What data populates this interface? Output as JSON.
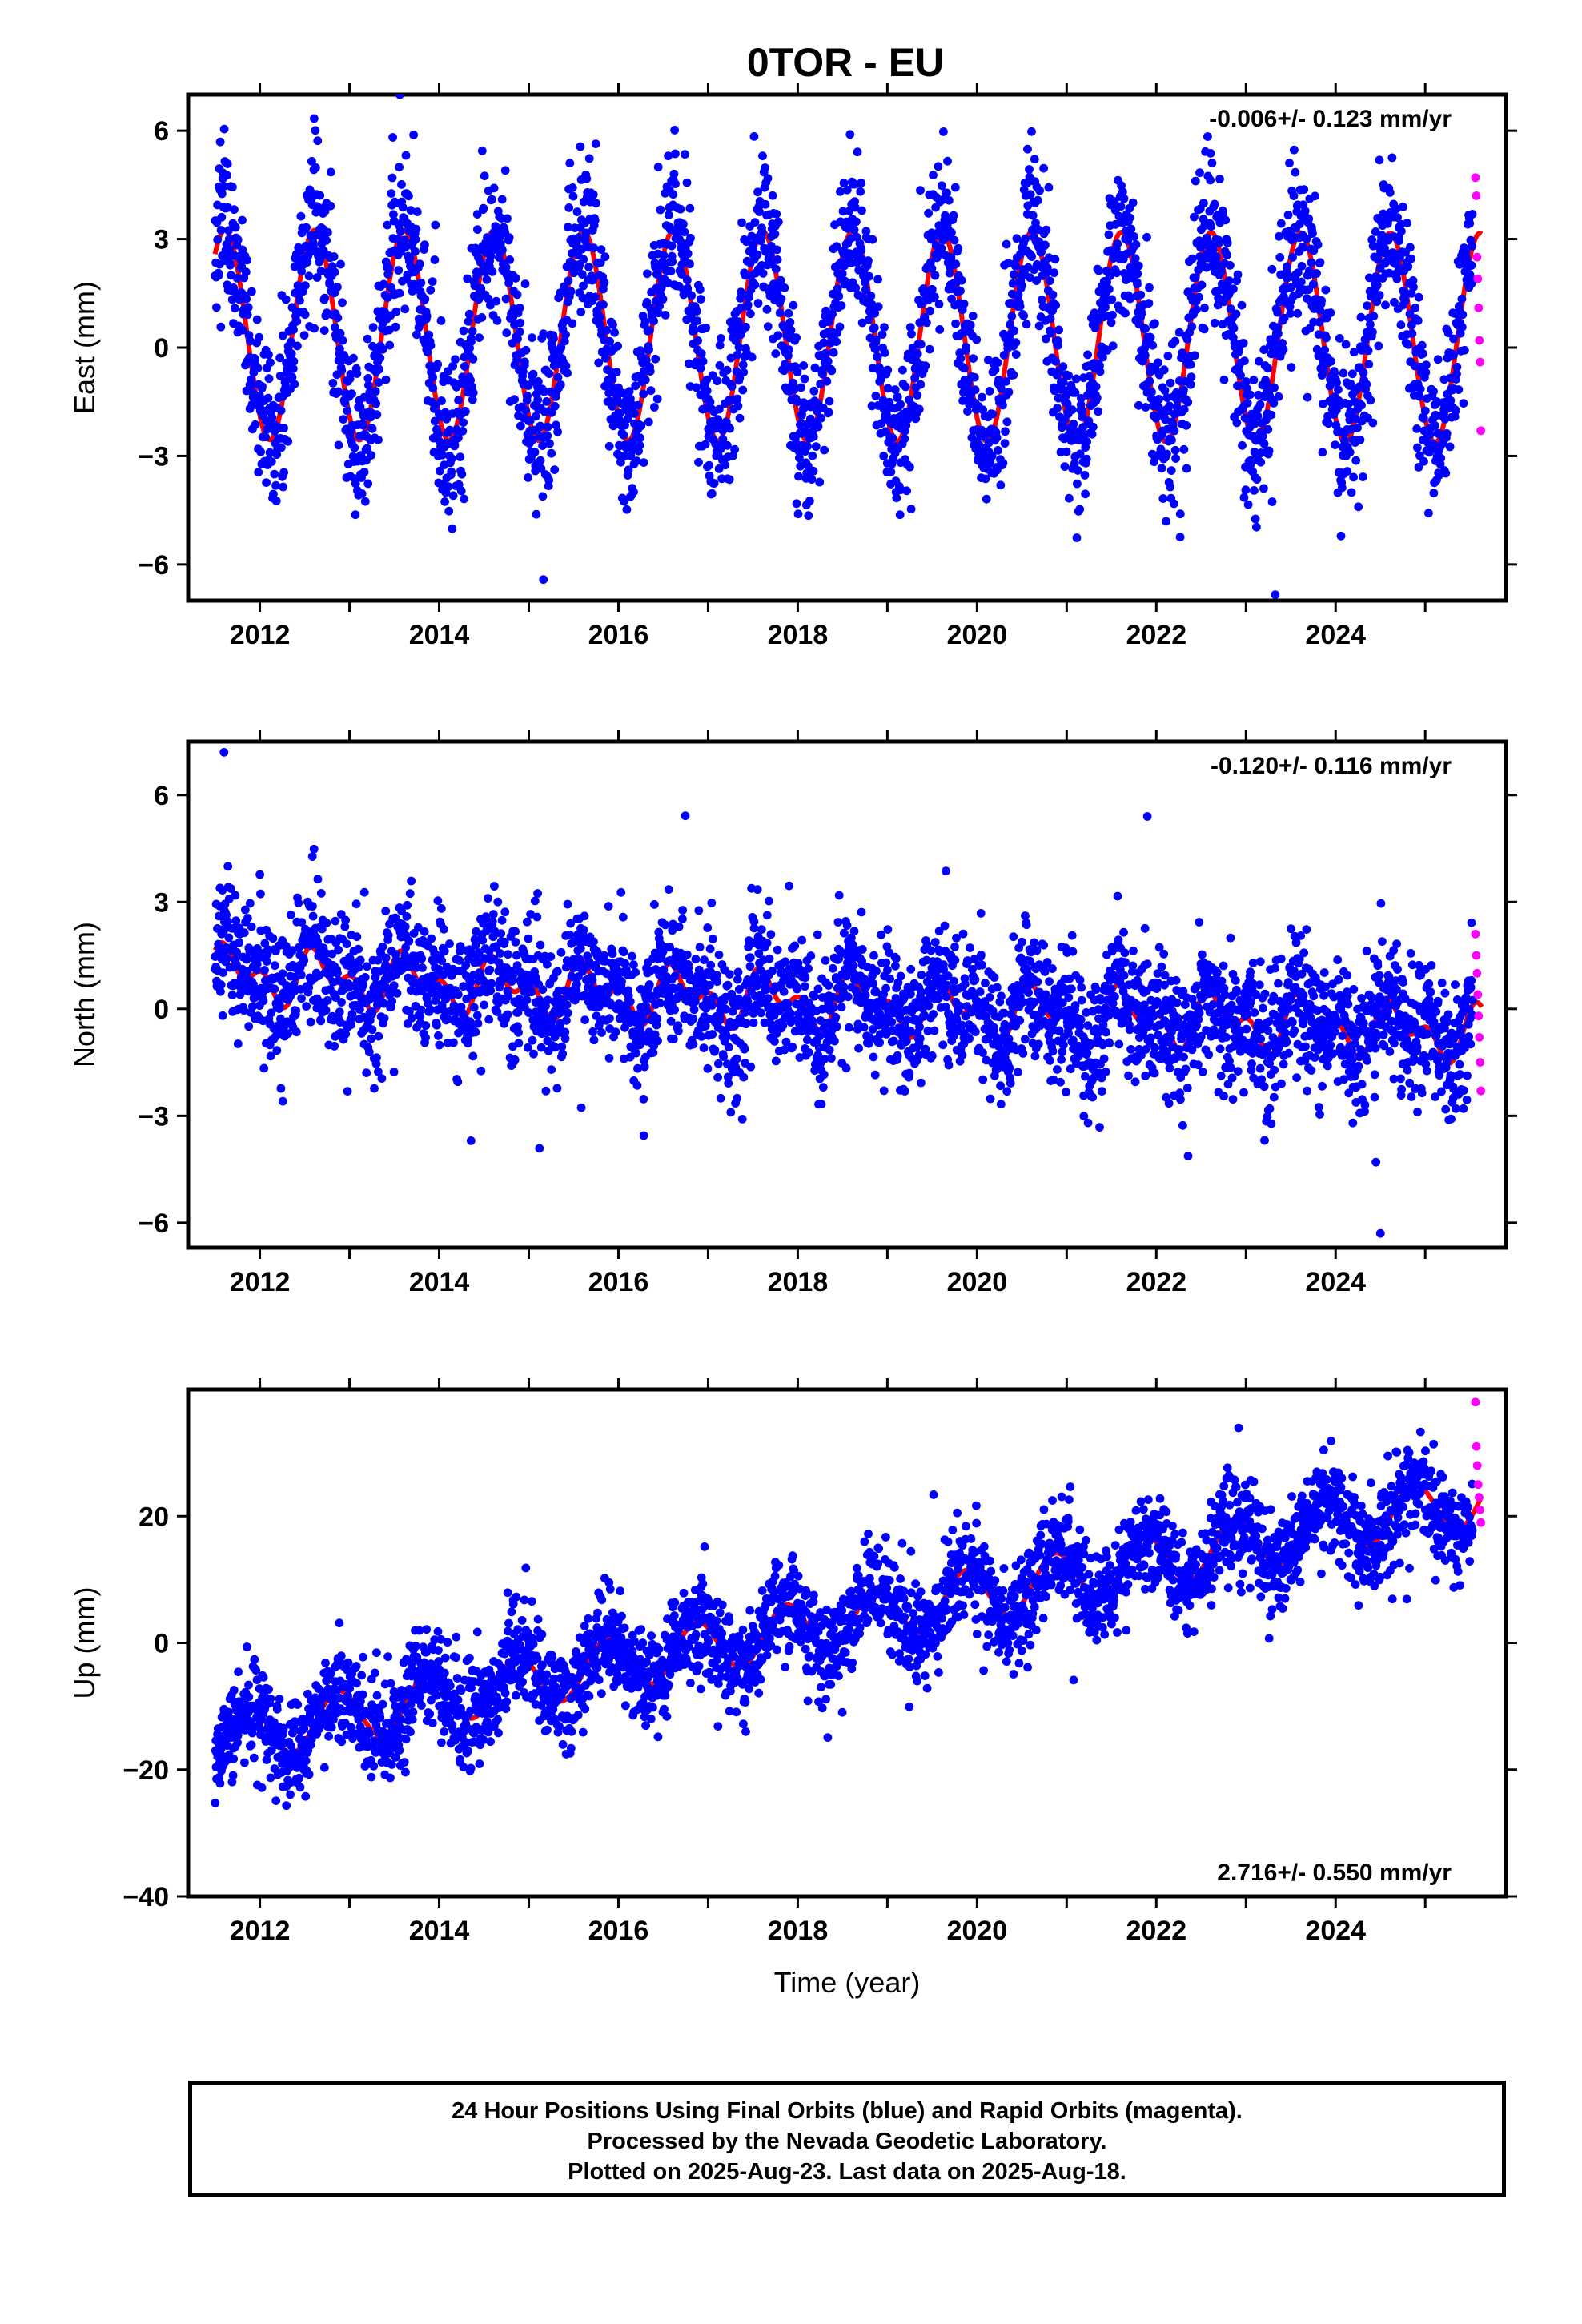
{
  "chart_data": {
    "type": "scatter",
    "title": "0TOR - EU",
    "xlabel": "Time (year)",
    "x_ticks": [
      "2012",
      "2014",
      "2016",
      "2018",
      "2020",
      "2022",
      "2024"
    ],
    "xlim": [
      2011.2,
      2025.9
    ],
    "panels": [
      {
        "id": "east",
        "ylabel": "East (mm)",
        "ylim": [
          -7.0,
          7.0
        ],
        "y_ticks": [
          6,
          3,
          0,
          -3,
          -6
        ],
        "y_tick_labels": [
          "6",
          "3",
          "0",
          "−3",
          "−6"
        ],
        "rate_label": "-0.006+/- 0.123 mm/yr",
        "rate_position": "top-right",
        "model": {
          "start": 2011.5,
          "end": 2025.63,
          "offset": 0.35,
          "trend": -0.006,
          "annual_amp": 2.9,
          "annual_phase": 0.36,
          "semiannual_amp": 0.0
        },
        "final_scatter_mm": 1.1,
        "rapid_values": [
          4.7,
          4.2,
          2.5,
          1.9,
          1.1,
          0.2,
          -0.4,
          -2.3
        ]
      },
      {
        "id": "north",
        "ylabel": "North (mm)",
        "ylim": [
          -6.7,
          7.5
        ],
        "y_ticks": [
          6,
          3,
          0,
          -3,
          -6
        ],
        "y_tick_labels": [
          "6",
          "3",
          "0",
          "−3",
          "−6"
        ],
        "rate_label": "-0.120+/- 0.116 mm/yr",
        "rate_position": "top-right",
        "model": {
          "start": 2011.5,
          "end": 2025.63,
          "offset": 1.0,
          "trend": -0.12,
          "annual_amp": 0.55,
          "annual_phase": 0.42,
          "semiannual_amp": 0.45
        },
        "final_scatter_mm": 0.9,
        "rapid_values": [
          2.1,
          1.5,
          1.0,
          0.4,
          -0.2,
          -0.8,
          -1.5,
          -2.3
        ],
        "outliers": [
          [
            2011.6,
            7.2
          ],
          [
            2021.9,
            5.4
          ],
          [
            2024.5,
            -6.3
          ],
          [
            2024.45,
            -4.3
          ]
        ]
      },
      {
        "id": "up",
        "ylabel": "Up (mm)",
        "ylim": [
          -40,
          40
        ],
        "y_ticks": [
          20,
          0,
          -20,
          -40
        ],
        "y_tick_labels": [
          "20",
          "0",
          "−20",
          "−40"
        ],
        "rate_label": "2.716+/- 0.550 mm/yr",
        "rate_position": "bottom-right",
        "model": {
          "start": 2011.5,
          "end": 2025.63,
          "offset": -15.5,
          "trend": 2.716,
          "annual_amp": 4.2,
          "annual_phase": 0.62,
          "semiannual_amp": 0.0
        },
        "final_scatter_mm": 3.8,
        "rapid_values": [
          38,
          31,
          28,
          25,
          23,
          21,
          19
        ]
      }
    ],
    "series": [
      {
        "name": "Final Orbits",
        "color": "#0000ff",
        "marker": "dot"
      },
      {
        "name": "Rapid Orbits",
        "color": "#ff00ff",
        "marker": "dot"
      },
      {
        "name": "model fit",
        "color": "#ff0000",
        "marker": "line"
      }
    ],
    "colors": {
      "final": "#0000ff",
      "rapid": "#ff00ff",
      "model": "#ff0000",
      "frame": "#000000"
    },
    "grid": false
  },
  "footer": {
    "line1": "24 Hour Positions Using Final Orbits (blue) and Rapid Orbits (magenta).",
    "line2": "Processed by the Nevada Geodetic Laboratory.",
    "line3": "Plotted on 2025-Aug-23. Last data on 2025-Aug-18."
  }
}
